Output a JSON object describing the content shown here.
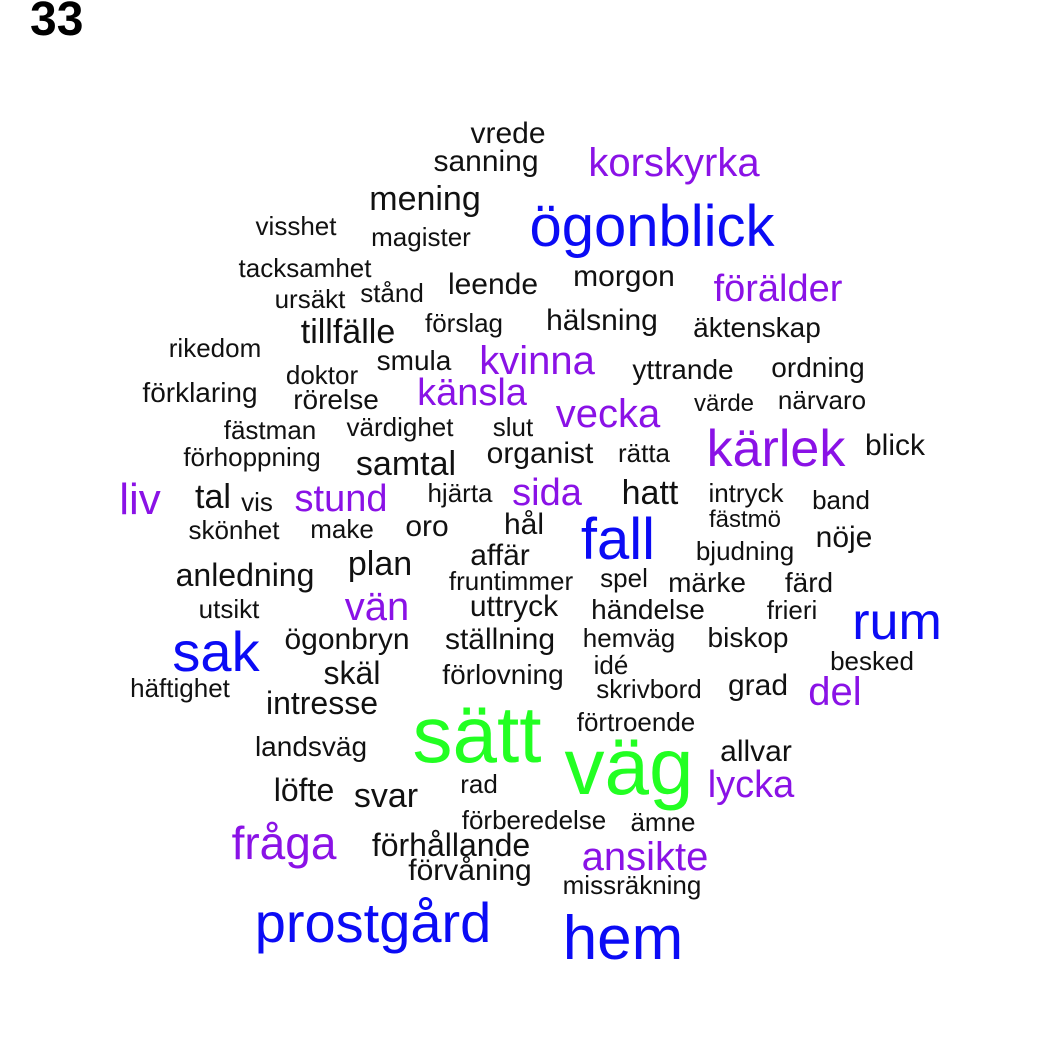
{
  "page_number": "33",
  "colors": {
    "green": "#22ff22",
    "blue": "#0b0bf5",
    "purple": "#8a12e6",
    "black": "#111111"
  },
  "words": [
    {
      "text": "vrede",
      "color": "black"
    },
    {
      "text": "sanning",
      "color": "black"
    },
    {
      "text": "korskyrka",
      "color": "purple"
    },
    {
      "text": "mening",
      "color": "black"
    },
    {
      "text": "ögonblick",
      "color": "blue"
    },
    {
      "text": "visshet",
      "color": "black"
    },
    {
      "text": "magister",
      "color": "black"
    },
    {
      "text": "tacksamhet",
      "color": "black"
    },
    {
      "text": "morgon",
      "color": "black"
    },
    {
      "text": "leende",
      "color": "black"
    },
    {
      "text": "förälder",
      "color": "purple"
    },
    {
      "text": "ursäkt",
      "color": "black"
    },
    {
      "text": "stånd",
      "color": "black"
    },
    {
      "text": "hälsning",
      "color": "black"
    },
    {
      "text": "förslag",
      "color": "black"
    },
    {
      "text": "tillfälle",
      "color": "black"
    },
    {
      "text": "äktenskap",
      "color": "black"
    },
    {
      "text": "rikedom",
      "color": "black"
    },
    {
      "text": "kvinna",
      "color": "purple"
    },
    {
      "text": "smula",
      "color": "black"
    },
    {
      "text": "yttrande",
      "color": "black"
    },
    {
      "text": "ordning",
      "color": "black"
    },
    {
      "text": "doktor",
      "color": "black"
    },
    {
      "text": "förklaring",
      "color": "black"
    },
    {
      "text": "känsla",
      "color": "purple"
    },
    {
      "text": "rörelse",
      "color": "black"
    },
    {
      "text": "vecka",
      "color": "purple"
    },
    {
      "text": "värde",
      "color": "black"
    },
    {
      "text": "närvaro",
      "color": "black"
    },
    {
      "text": "fästman",
      "color": "black"
    },
    {
      "text": "värdighet",
      "color": "black"
    },
    {
      "text": "slut",
      "color": "black"
    },
    {
      "text": "kärlek",
      "color": "purple"
    },
    {
      "text": "blick",
      "color": "black"
    },
    {
      "text": "förhoppning",
      "color": "black"
    },
    {
      "text": "organist",
      "color": "black"
    },
    {
      "text": "rätta",
      "color": "black"
    },
    {
      "text": "samtal",
      "color": "black"
    },
    {
      "text": "liv",
      "color": "purple"
    },
    {
      "text": "tal",
      "color": "black"
    },
    {
      "text": "vis",
      "color": "black"
    },
    {
      "text": "stund",
      "color": "purple"
    },
    {
      "text": "hjärta",
      "color": "black"
    },
    {
      "text": "sida",
      "color": "purple"
    },
    {
      "text": "hatt",
      "color": "black"
    },
    {
      "text": "intryck",
      "color": "black"
    },
    {
      "text": "band",
      "color": "black"
    },
    {
      "text": "skönhet",
      "color": "black"
    },
    {
      "text": "make",
      "color": "black"
    },
    {
      "text": "oro",
      "color": "black"
    },
    {
      "text": "hål",
      "color": "black"
    },
    {
      "text": "fall",
      "color": "blue"
    },
    {
      "text": "fästmö",
      "color": "black"
    },
    {
      "text": "nöje",
      "color": "black"
    },
    {
      "text": "bjudning",
      "color": "black"
    },
    {
      "text": "plan",
      "color": "black"
    },
    {
      "text": "affär",
      "color": "black"
    },
    {
      "text": "anledning",
      "color": "black"
    },
    {
      "text": "fruntimmer",
      "color": "black"
    },
    {
      "text": "spel",
      "color": "black"
    },
    {
      "text": "märke",
      "color": "black"
    },
    {
      "text": "färd",
      "color": "black"
    },
    {
      "text": "utsikt",
      "color": "black"
    },
    {
      "text": "vän",
      "color": "purple"
    },
    {
      "text": "uttryck",
      "color": "black"
    },
    {
      "text": "händelse",
      "color": "black"
    },
    {
      "text": "frieri",
      "color": "black"
    },
    {
      "text": "rum",
      "color": "blue"
    },
    {
      "text": "sak",
      "color": "blue"
    },
    {
      "text": "ögonbryn",
      "color": "black"
    },
    {
      "text": "ställning",
      "color": "black"
    },
    {
      "text": "hemväg",
      "color": "black"
    },
    {
      "text": "biskop",
      "color": "black"
    },
    {
      "text": "skäl",
      "color": "black"
    },
    {
      "text": "idé",
      "color": "black"
    },
    {
      "text": "besked",
      "color": "black"
    },
    {
      "text": "förlovning",
      "color": "black"
    },
    {
      "text": "häftighet",
      "color": "black"
    },
    {
      "text": "skrivbord",
      "color": "black"
    },
    {
      "text": "grad",
      "color": "black"
    },
    {
      "text": "del",
      "color": "purple"
    },
    {
      "text": "intresse",
      "color": "black"
    },
    {
      "text": "förtroende",
      "color": "black"
    },
    {
      "text": "sätt",
      "color": "green"
    },
    {
      "text": "landsväg",
      "color": "black"
    },
    {
      "text": "väg",
      "color": "green"
    },
    {
      "text": "allvar",
      "color": "black"
    },
    {
      "text": "löfte",
      "color": "black"
    },
    {
      "text": "rad",
      "color": "black"
    },
    {
      "text": "svar",
      "color": "black"
    },
    {
      "text": "lycka",
      "color": "purple"
    },
    {
      "text": "förberedelse",
      "color": "black"
    },
    {
      "text": "ämne",
      "color": "black"
    },
    {
      "text": "fråga",
      "color": "purple"
    },
    {
      "text": "förhållande",
      "color": "black"
    },
    {
      "text": "ansikte",
      "color": "purple"
    },
    {
      "text": "förvåning",
      "color": "black"
    },
    {
      "text": "missräkning",
      "color": "black"
    },
    {
      "text": "prostgård",
      "color": "blue"
    },
    {
      "text": "hem",
      "color": "blue"
    }
  ]
}
